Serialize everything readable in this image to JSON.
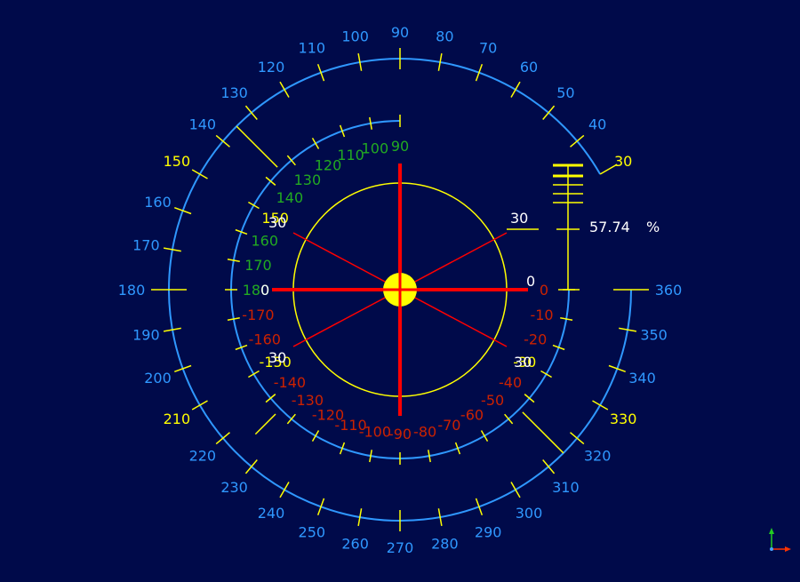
{
  "colors": {
    "background": "#000a4a",
    "outer_ring": "#2f98ff",
    "inner_ring": "#2f98ff",
    "yellow": "#ffff00",
    "red": "#ff0000",
    "green": "#22aa22",
    "dark_red": "#cc2200",
    "white": "#ffffff",
    "axis_x": "#ff3300",
    "axis_y": "#22cc22"
  },
  "outer_scale": {
    "labels": [
      "30",
      "40",
      "50",
      "60",
      "70",
      "80",
      "90",
      "100",
      "110",
      "120",
      "130",
      "140",
      "150",
      "160",
      "170",
      "180",
      "190",
      "200",
      "210",
      "220",
      "230",
      "240",
      "250",
      "260",
      "270",
      "280",
      "290",
      "300",
      "310",
      "320",
      "330",
      "340",
      "350",
      "360"
    ],
    "yellow_labels": [
      "30",
      "150",
      "210",
      "330"
    ]
  },
  "inner_scale": {
    "upper_labels": [
      "90",
      "100",
      "110",
      "120",
      "130",
      "140",
      "150",
      "160",
      "170",
      "180"
    ],
    "lower_labels": [
      "-170",
      "-160",
      "-150",
      "-140",
      "-130",
      "-120",
      "-110",
      "-100",
      "-90",
      "-80",
      "-70",
      "-60",
      "-50",
      "-40",
      "-30",
      "-20",
      "-10",
      "0"
    ],
    "yellow_labels": [
      "150",
      "-150",
      "-30"
    ]
  },
  "center": {
    "left_zero": "0",
    "right_zero": "0",
    "top_left_30": "30",
    "bottom_left_30": "30",
    "top_right_30": "30",
    "bottom_right_30": "30"
  },
  "gauge": {
    "value": 57.74,
    "value_text": "57.74",
    "unit": "%"
  },
  "icons": {
    "axes": "axes-triad-icon"
  }
}
